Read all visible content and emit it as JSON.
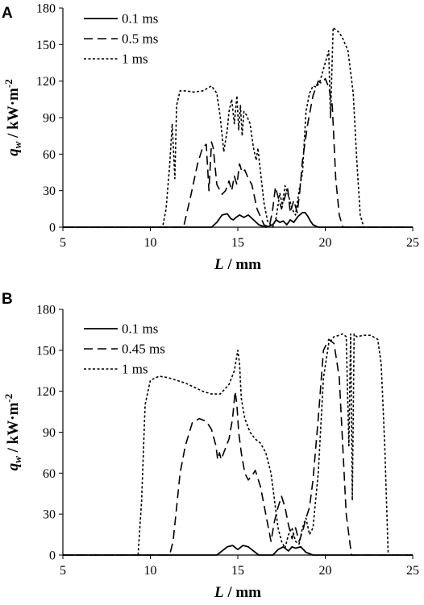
{
  "chart_data": [
    {
      "panel": "A",
      "type": "line",
      "xlabel": {
        "var": "L",
        "unit": " / mm"
      },
      "ylabel": {
        "var": "q",
        "sub": "w",
        "unit": " / kW·m",
        "sup": "-2"
      },
      "xlim": [
        5,
        25
      ],
      "ylim": [
        0,
        180
      ],
      "xticks": [
        5,
        10,
        15,
        20,
        25
      ],
      "yticks": [
        0,
        30,
        60,
        90,
        120,
        150,
        180
      ],
      "grid": false,
      "legend_position": "top-left",
      "series": [
        {
          "name": "0.1 ms",
          "style": "solid",
          "color": "#000000",
          "x": [
            5,
            13.5,
            13.8,
            14.1,
            14.4,
            14.6,
            14.75,
            14.9,
            15.1,
            15.35,
            15.6,
            15.9,
            16.2,
            16.6,
            17.0,
            17.2,
            17.4,
            17.6,
            17.8,
            18.0,
            18.2,
            18.45,
            18.7,
            18.85,
            19.0,
            19.15,
            19.3,
            19.6,
            25
          ],
          "y": [
            0,
            0,
            4,
            10,
            11,
            7,
            6,
            8,
            10,
            8,
            10,
            6,
            2,
            0,
            2,
            6,
            4,
            5,
            2,
            6,
            4,
            9,
            12,
            12,
            9,
            5,
            2,
            0,
            0
          ]
        },
        {
          "name": "0.5 ms",
          "style": "dashed",
          "color": "#000000",
          "x": [
            5,
            11.9,
            12.3,
            12.7,
            13.0,
            13.2,
            13.35,
            13.5,
            13.6,
            13.8,
            14.1,
            14.3,
            14.5,
            14.65,
            14.8,
            14.95,
            15.1,
            15.25,
            15.4,
            15.6,
            15.8,
            16.1,
            16.5,
            16.8,
            17.0,
            17.15,
            17.3,
            17.5,
            17.7,
            17.85,
            18.0,
            18.2,
            18.4,
            18.55,
            18.7,
            19.0,
            19.3,
            19.6,
            19.8,
            20.0,
            20.2,
            20.4,
            20.6,
            20.8,
            21.0,
            25
          ],
          "y": [
            0,
            0,
            25,
            52,
            66,
            68,
            30,
            70,
            65,
            35,
            27,
            30,
            38,
            30,
            42,
            35,
            52,
            45,
            47,
            40,
            35,
            15,
            2,
            0,
            15,
            33,
            25,
            15,
            25,
            32,
            12,
            22,
            12,
            30,
            55,
            85,
            108,
            120,
            118,
            122,
            115,
            100,
            40,
            10,
            0,
            0
          ]
        },
        {
          "name": "1 ms",
          "style": "dotted",
          "color": "#000000",
          "x": [
            5,
            10.7,
            10.9,
            11.1,
            11.25,
            11.4,
            11.5,
            11.7,
            12.0,
            12.5,
            13.0,
            13.5,
            13.8,
            14.0,
            14.2,
            14.4,
            14.5,
            14.65,
            14.8,
            14.95,
            15.05,
            15.15,
            15.25,
            15.35,
            15.5,
            15.7,
            15.9,
            16.05,
            16.15,
            16.3,
            16.5,
            16.7,
            17.0,
            17.2,
            17.4,
            17.55,
            17.7,
            17.9,
            18.1,
            18.3,
            18.5,
            18.7,
            18.9,
            19.1,
            19.3,
            19.5,
            19.7,
            19.9,
            20.1,
            20.2,
            20.3,
            20.45,
            20.6,
            20.8,
            21.0,
            21.3,
            21.6,
            21.8,
            22.0,
            22.2,
            25
          ],
          "y": [
            0,
            0,
            15,
            50,
            85,
            40,
            100,
            112,
            112,
            111,
            112,
            116,
            110,
            90,
            62,
            80,
            95,
            105,
            85,
            108,
            80,
            100,
            75,
            95,
            92,
            85,
            65,
            55,
            65,
            45,
            20,
            5,
            0,
            8,
            28,
            18,
            34,
            26,
            15,
            10,
            30,
            45,
            95,
            110,
            116,
            115,
            120,
            130,
            140,
            145,
            90,
            164,
            162,
            160,
            155,
            145,
            110,
            55,
            10,
            0,
            0
          ]
        }
      ]
    },
    {
      "panel": "B",
      "type": "line",
      "xlabel": {
        "var": "L",
        "unit": " / mm"
      },
      "ylabel": {
        "var": "q",
        "sub": "w",
        "unit": " / kW·m",
        "sup": "-2"
      },
      "xlim": [
        5,
        25
      ],
      "ylim": [
        0,
        180
      ],
      "xticks": [
        5,
        10,
        15,
        20,
        25
      ],
      "yticks": [
        0,
        30,
        60,
        90,
        120,
        150,
        180
      ],
      "grid": false,
      "legend_position": "top-left",
      "series": [
        {
          "name": "0.1 ms",
          "style": "solid",
          "color": "#000000",
          "x": [
            5,
            13.8,
            14.1,
            14.4,
            14.7,
            15.0,
            15.3,
            15.6,
            15.9,
            16.2,
            17.0,
            17.3,
            17.6,
            17.9,
            18.1,
            18.3,
            18.6,
            18.9,
            19.3,
            25
          ],
          "y": [
            0,
            0,
            3,
            6,
            7,
            4,
            7,
            6,
            3,
            0,
            0,
            4,
            6,
            3,
            6,
            5,
            6,
            2,
            0,
            0
          ]
        },
        {
          "name": "0.45 ms",
          "style": "dashed",
          "color": "#000000",
          "x": [
            5,
            11.1,
            11.3,
            11.5,
            11.7,
            12.0,
            12.4,
            12.8,
            13.2,
            13.5,
            13.75,
            13.85,
            13.95,
            14.05,
            14.2,
            14.5,
            14.7,
            14.85,
            14.95,
            15.05,
            15.2,
            15.4,
            15.6,
            15.8,
            16.0,
            16.3,
            16.6,
            16.9,
            17.1,
            17.3,
            17.5,
            17.7,
            17.9,
            18.1,
            18.3,
            18.5,
            18.7,
            18.9,
            19.1,
            19.3,
            19.6,
            19.9,
            20.2,
            20.5,
            20.8,
            21.0,
            21.2,
            21.5,
            25
          ],
          "y": [
            0,
            0,
            10,
            35,
            60,
            80,
            97,
            100,
            98,
            92,
            80,
            70,
            75,
            70,
            75,
            85,
            100,
            120,
            110,
            90,
            75,
            60,
            55,
            58,
            62,
            50,
            30,
            10,
            25,
            35,
            43,
            35,
            22,
            12,
            20,
            10,
            17,
            27,
            35,
            55,
            100,
            150,
            158,
            155,
            130,
            80,
            30,
            0,
            0
          ]
        },
        {
          "name": "1 ms",
          "style": "dotted",
          "color": "#000000",
          "x": [
            5,
            9.3,
            9.5,
            9.7,
            10.0,
            10.5,
            11.0,
            11.5,
            12.0,
            12.5,
            13.0,
            13.5,
            14.0,
            14.5,
            14.8,
            15.0,
            15.1,
            15.2,
            15.4,
            15.7,
            16.0,
            16.3,
            16.6,
            16.9,
            17.1,
            17.3,
            17.5,
            17.7,
            17.9,
            18.1,
            18.3,
            18.5,
            18.7,
            18.9,
            19.1,
            19.3,
            19.6,
            19.9,
            20.2,
            20.5,
            20.8,
            21.0,
            21.2,
            21.35,
            21.45,
            21.55,
            21.65,
            21.8,
            22.2,
            22.6,
            23.0,
            23.2,
            23.4,
            23.6,
            25
          ],
          "y": [
            0,
            0,
            40,
            110,
            128,
            131,
            130,
            128,
            126,
            123,
            120,
            118,
            118,
            125,
            135,
            150,
            140,
            115,
            100,
            90,
            85,
            82,
            75,
            60,
            40,
            20,
            10,
            5,
            15,
            20,
            10,
            8,
            20,
            27,
            15,
            20,
            60,
            130,
            155,
            160,
            161,
            162,
            160,
            80,
            162,
            40,
            162,
            160,
            161,
            161,
            158,
            140,
            80,
            0,
            0
          ]
        }
      ]
    }
  ]
}
